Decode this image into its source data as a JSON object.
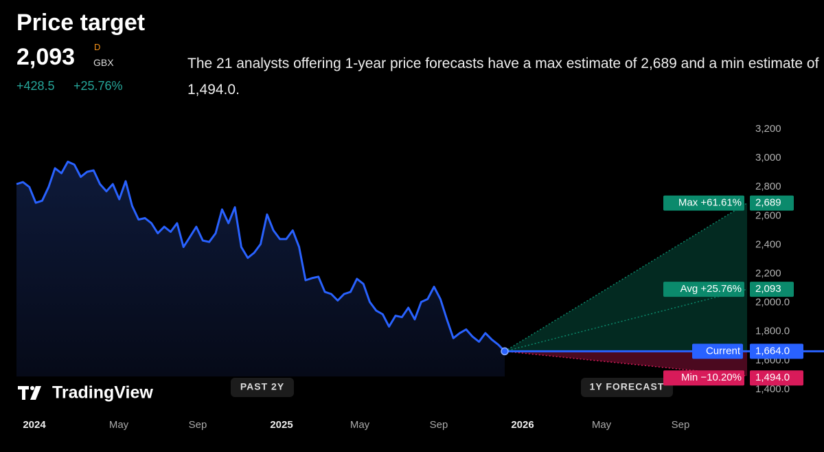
{
  "header": {
    "title": "Price target",
    "price": "2,093",
    "flag": "D",
    "currency": "GBX",
    "change": "+428.5",
    "change_percent": "+25.76%",
    "description": "The 21 analysts offering 1-year price forecasts have a max estimate of 2,689 and a min estimate of 1,494.0."
  },
  "brand": "TradingView",
  "buttons": [
    "PAST 2Y",
    "1Y FORECAST"
  ],
  "chart_data": {
    "type": "line",
    "color": "#2962ff",
    "x_labels": [
      "2024",
      "May",
      "Sep",
      "2025",
      "May",
      "Sep",
      "2026",
      "May",
      "Sep"
    ],
    "values": [
      2820,
      2834,
      2800,
      2691,
      2705,
      2800,
      2930,
      2895,
      2975,
      2955,
      2870,
      2905,
      2915,
      2820,
      2770,
      2820,
      2715,
      2840,
      2670,
      2575,
      2585,
      2550,
      2480,
      2525,
      2490,
      2550,
      2385,
      2455,
      2525,
      2430,
      2420,
      2480,
      2645,
      2550,
      2660,
      2385,
      2310,
      2345,
      2405,
      2610,
      2500,
      2440,
      2440,
      2500,
      2385,
      2155,
      2170,
      2180,
      2075,
      2060,
      2015,
      2060,
      2075,
      2165,
      2130,
      2005,
      1945,
      1920,
      1835,
      1910,
      1900,
      1965,
      1885,
      2005,
      2025,
      2110,
      2025,
      1885,
      1755,
      1790,
      1815,
      1765,
      1730,
      1790,
      1745,
      1710,
      1664
    ],
    "ylim": [
      1400,
      3200
    ],
    "yticks": [
      {
        "value": 3200,
        "label": "3,200"
      },
      {
        "value": 3000,
        "label": "3,000"
      },
      {
        "value": 2800,
        "label": "2,800"
      },
      {
        "value": 2600,
        "label": "2,600"
      },
      {
        "value": 2400,
        "label": "2,400"
      },
      {
        "value": 2200,
        "label": "2,200"
      },
      {
        "value": 2000,
        "label": "2,000.0"
      },
      {
        "value": 1800,
        "label": "1,800.0"
      },
      {
        "value": 1600,
        "label": "1,600.0"
      },
      {
        "value": 1400,
        "label": "1,400.0"
      }
    ],
    "forecast": {
      "max": {
        "label": "Max +61.61%",
        "value": 2689,
        "value_label": "2,689",
        "color": "#0b8a6c"
      },
      "avg": {
        "label": "Avg +25.76%",
        "value": 2093,
        "value_label": "2,093",
        "color": "#0b8a6c"
      },
      "current": {
        "label": "Current",
        "value": 1664,
        "value_label": "1,664.0",
        "color": "#2962ff"
      },
      "min": {
        "label": "Min −10.20%",
        "value": 1494,
        "value_label": "1,494.0",
        "color": "#d81b5a"
      }
    }
  }
}
